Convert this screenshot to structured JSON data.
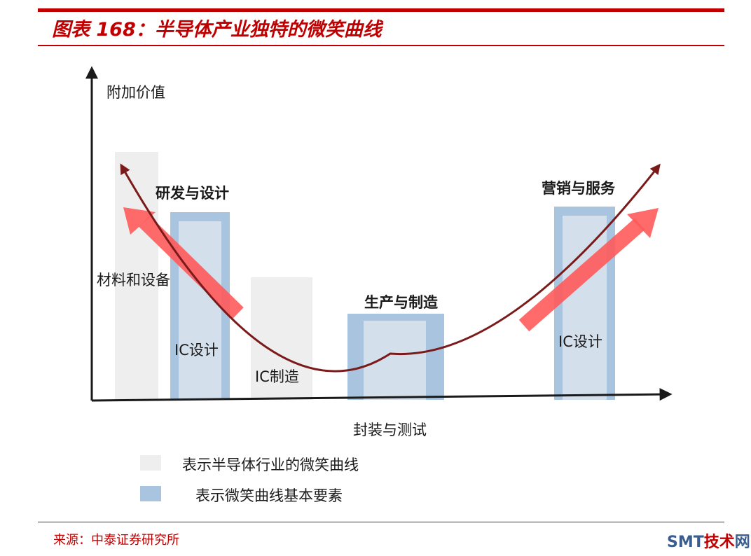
{
  "header": {
    "title": "图表 168：半导体产业独特的微笑曲线"
  },
  "diagram": {
    "y_axis_label": "附加价值",
    "x_axis_label": "封装与测试",
    "left_label": "研发与设计",
    "right_label": "营销与服务",
    "center_label": "生产与制造",
    "bar_labels": {
      "materials": "材料和设备",
      "ic_design_left": "IC设计",
      "ic_manufacturing": "IC制造",
      "ic_design_right": "IC设计"
    },
    "colors": {
      "industry_bar": "#eeeeee",
      "element_bar": "#a8c4de",
      "element_bar_inner": "#d4dfec",
      "curve": "#7b1a1a",
      "arrow": "#ff5a5a",
      "axis": "#1a1a1a"
    }
  },
  "legend": {
    "items": [
      {
        "label": "表示半导体行业的微笑曲线",
        "color": "#eeeeee"
      },
      {
        "label": "表示微笑曲线基本要素",
        "color": "#a8c4de"
      }
    ]
  },
  "footer": {
    "source": "来源：中泰证券研究所",
    "watermark_a": "SMT",
    "watermark_b": "技术",
    "watermark_c": "网"
  }
}
